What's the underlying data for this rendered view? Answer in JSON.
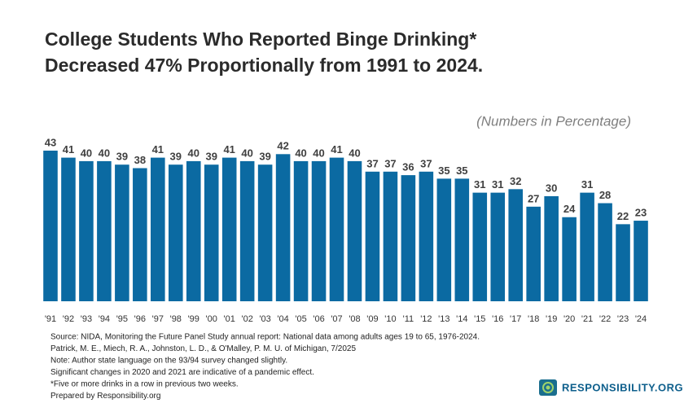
{
  "chart_data": {
    "type": "bar",
    "title": [
      "College Students Who Reported Binge Drinking*",
      "Decreased 47% Proportionally from 1991 to 2024."
    ],
    "subtitle": "(Numbers in Percentage)",
    "categories": [
      "'91",
      "'92",
      "'93",
      "'94",
      "'95",
      "'96",
      "'97",
      "'98",
      "'99",
      "'00",
      "'01",
      "'02",
      "'03",
      "'04",
      "'05",
      "'06",
      "'07",
      "'08",
      "'09",
      "'10",
      "'11",
      "'12",
      "'13",
      "'14",
      "'15",
      "'16",
      "'17",
      "'18",
      "'19",
      "'20",
      "'21",
      "'22",
      "'23",
      "'24"
    ],
    "values": [
      43,
      41,
      40,
      40,
      39,
      38,
      41,
      39,
      40,
      39,
      41,
      40,
      39,
      42,
      40,
      40,
      41,
      40,
      37,
      37,
      36,
      37,
      35,
      35,
      31,
      31,
      32,
      27,
      30,
      24,
      31,
      28,
      22,
      23
    ],
    "color": "#0b6aa2"
  },
  "notes": [
    "Source: NIDA, Monitoring the Future Panel Study annual report: National data among adults ages 19 to 65, 1976-2024.",
    "Patrick, M. E., Miech, R. A., Johnston, L. D., & O'Malley, P. M. U. of Michigan, 7/2025",
    "Note: Author state language on the 93/94 survey changed slightly.",
    "Significant changes in 2020 and 2021 are indicative of a pandemic effect.",
    "*Five or more drinks in a row in previous two weeks.",
    "Prepared by Responsibility.org"
  ],
  "brand": "RESPONSIBILITY.ORG"
}
